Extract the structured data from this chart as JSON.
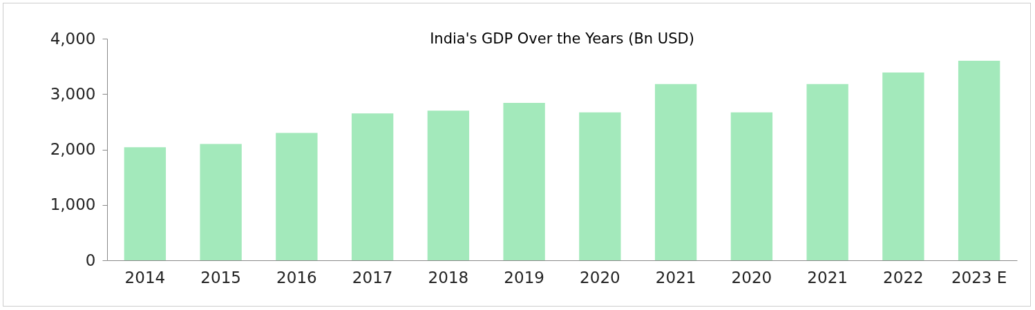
{
  "chart_data": {
    "type": "bar",
    "title": "India's GDP Over the Years (Bn USD)",
    "categories": [
      "2014",
      "2015",
      "2016",
      "2017",
      "2018",
      "2019",
      "2020",
      "2021",
      "2020",
      "2021",
      "2022",
      "2023 E"
    ],
    "values": [
      2040,
      2100,
      2300,
      2650,
      2700,
      2840,
      2670,
      3180,
      2670,
      3180,
      3390,
      3600
    ],
    "color": "#a3e9bb",
    "ylim": [
      0,
      4000
    ],
    "yticks": [
      0,
      {
        "value": 1000,
        "label": "1,000"
      },
      {
        "value": 2000,
        "label": "2,000"
      },
      {
        "value": 3000,
        "label": "3,000"
      },
      {
        "value": 4000,
        "label": "4,000"
      }
    ],
    "grid": false
  }
}
